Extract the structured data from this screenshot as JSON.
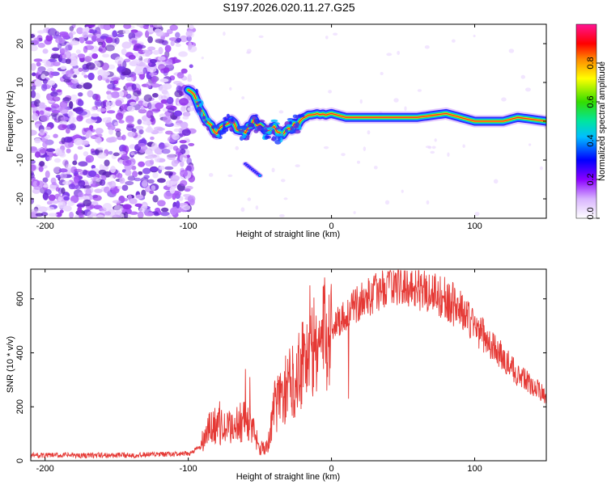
{
  "title": "S197.2026.020.11.27.G25",
  "chart_data": [
    {
      "type": "heatmap",
      "xlabel": "Height of straight line (km)",
      "ylabel": "Frequency (Hz)",
      "xlim": [
        -210,
        150
      ],
      "ylim": [
        -25,
        25
      ],
      "x_ticks": [
        -200,
        -100,
        0,
        100
      ],
      "y_ticks": [
        -20,
        -10,
        0,
        10,
        20
      ],
      "colorbar": {
        "label": "Normalized spectral amplitude",
        "range": [
          0,
          1
        ],
        "ticks": [
          "0.0",
          "0.2",
          "0.4",
          "0.6",
          "0.8"
        ]
      },
      "ridge": {
        "x": [
          -100,
          -95,
          -90,
          -85,
          -80,
          -75,
          -70,
          -65,
          -60,
          -55,
          -50,
          -45,
          -40,
          -35,
          -30,
          -25,
          -20,
          -15,
          -10,
          -5,
          0,
          10,
          20,
          40,
          60,
          80,
          90,
          100,
          110,
          120,
          130,
          150
        ],
        "frequency": [
          8,
          6,
          2,
          -1,
          -3,
          -1,
          0,
          -2,
          -3,
          0,
          -1,
          -3,
          -2,
          -4,
          -2,
          -1,
          1,
          2,
          2,
          1,
          2,
          1,
          1,
          1,
          1,
          2,
          1,
          0,
          0,
          0,
          1,
          0
        ]
      },
      "side_blob": {
        "x": [
          -60,
          -50
        ],
        "frequency": [
          -11,
          -14
        ]
      },
      "noise_region": {
        "x": [
          -210,
          -97
        ],
        "frequency": [
          -25,
          25
        ]
      }
    },
    {
      "type": "line",
      "xlabel": "Height of straight line (km)",
      "ylabel": "SNR (10 * v/v)",
      "xlim": [
        -210,
        150
      ],
      "ylim": [
        0,
        710
      ],
      "x_ticks": [
        -200,
        -100,
        0,
        100
      ],
      "y_ticks": [
        0,
        200,
        400,
        600
      ],
      "line_color": "#e53935",
      "envelope": {
        "x": [
          -210,
          -150,
          -100,
          -92,
          -85,
          -80,
          -75,
          -70,
          -65,
          -60,
          -55,
          -50,
          -45,
          -40,
          -35,
          -30,
          -25,
          -20,
          -15,
          -10,
          -5,
          0,
          10,
          20,
          30,
          40,
          50,
          60,
          70,
          80,
          90,
          100,
          110,
          120,
          130,
          140,
          150
        ],
        "snr": [
          20,
          20,
          25,
          50,
          120,
          135,
          115,
          125,
          140,
          150,
          110,
          55,
          45,
          200,
          240,
          280,
          310,
          390,
          400,
          430,
          460,
          500,
          540,
          590,
          620,
          650,
          650,
          645,
          625,
          600,
          560,
          500,
          440,
          380,
          320,
          280,
          240
        ]
      },
      "spikes": [
        {
          "x": -78,
          "snr": 220
        },
        {
          "x": -60,
          "snr": 340
        },
        {
          "x": -57,
          "snr": 310
        },
        {
          "x": -42,
          "snr": 180
        },
        {
          "x": -32,
          "snr": 390
        },
        {
          "x": -15,
          "snr": 650
        },
        {
          "x": 12,
          "snr": 230
        },
        {
          "x": 40,
          "snr": 700
        }
      ]
    }
  ]
}
